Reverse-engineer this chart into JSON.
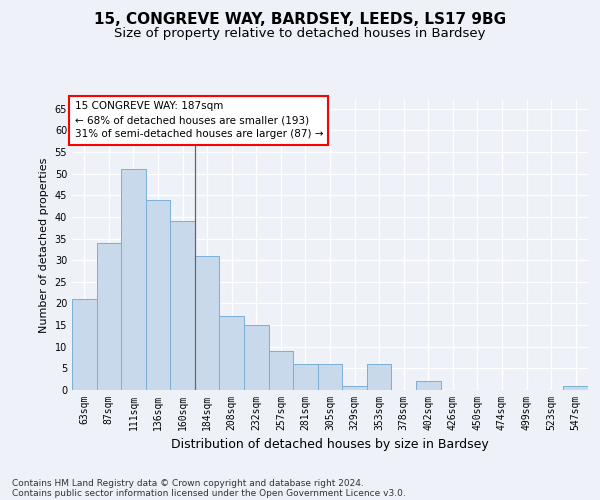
{
  "title_line1": "15, CONGREVE WAY, BARDSEY, LEEDS, LS17 9BG",
  "title_line2": "Size of property relative to detached houses in Bardsey",
  "xlabel": "Distribution of detached houses by size in Bardsey",
  "ylabel": "Number of detached properties",
  "categories": [
    "63sqm",
    "87sqm",
    "111sqm",
    "136sqm",
    "160sqm",
    "184sqm",
    "208sqm",
    "232sqm",
    "257sqm",
    "281sqm",
    "305sqm",
    "329sqm",
    "353sqm",
    "378sqm",
    "402sqm",
    "426sqm",
    "450sqm",
    "474sqm",
    "499sqm",
    "523sqm",
    "547sqm"
  ],
  "values": [
    21,
    34,
    51,
    44,
    39,
    31,
    17,
    15,
    9,
    6,
    6,
    1,
    6,
    0,
    2,
    0,
    0,
    0,
    0,
    0,
    1
  ],
  "bar_color": "#c9d9ec",
  "bar_edge_color": "#7bafd4",
  "highlight_index": 5,
  "annotation_text_line1": "15 CONGREVE WAY: 187sqm",
  "annotation_text_line2": "← 68% of detached houses are smaller (193)",
  "annotation_text_line3": "31% of semi-detached houses are larger (87) →",
  "annotation_box_color": "white",
  "annotation_border_color": "red",
  "vline_x_index": 5,
  "ylim": [
    0,
    67
  ],
  "yticks": [
    0,
    5,
    10,
    15,
    20,
    25,
    30,
    35,
    40,
    45,
    50,
    55,
    60,
    65
  ],
  "footer_line1": "Contains HM Land Registry data © Crown copyright and database right 2024.",
  "footer_line2": "Contains public sector information licensed under the Open Government Licence v3.0.",
  "bg_color": "#eef2f8",
  "grid_color": "#ffffff",
  "title_fontsize": 11,
  "subtitle_fontsize": 9.5,
  "tick_fontsize": 7,
  "ylabel_fontsize": 8,
  "xlabel_fontsize": 9,
  "footer_fontsize": 6.5,
  "ann_fontsize": 7.5
}
